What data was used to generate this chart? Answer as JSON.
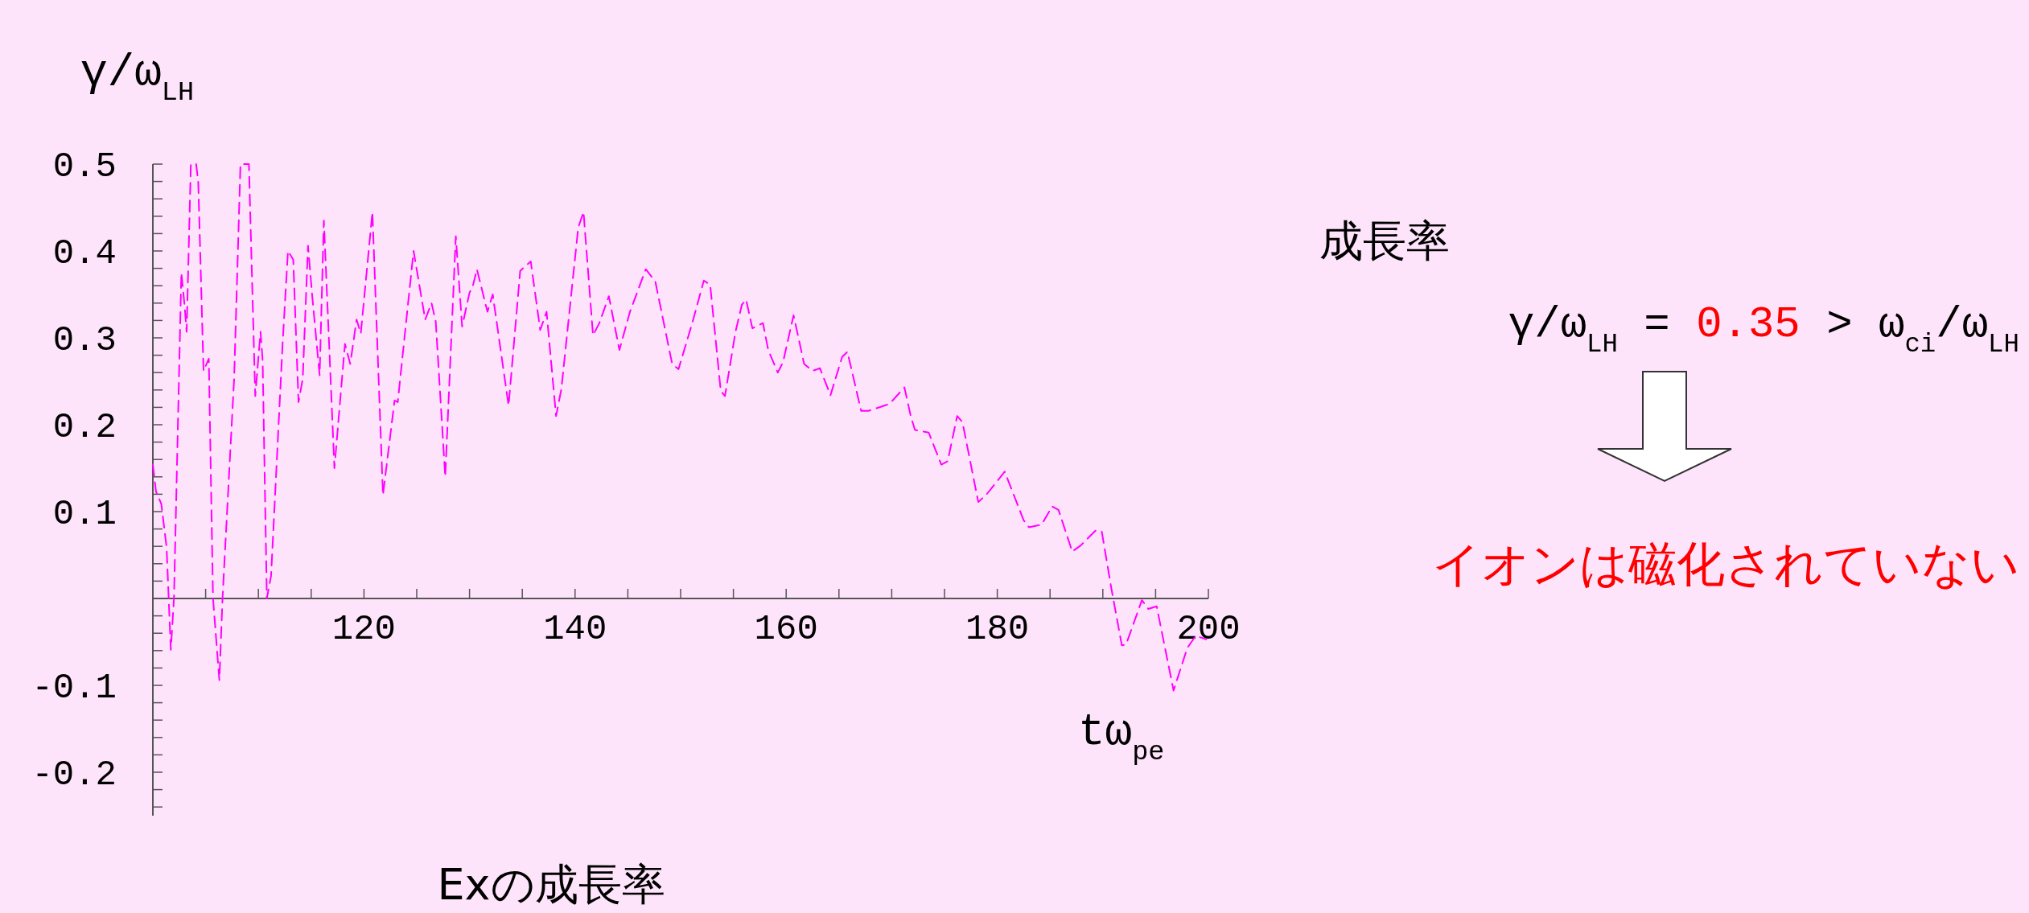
{
  "chart_data": {
    "type": "line",
    "title": "Exの成長率",
    "xlabel": "tω$_{pe}$",
    "ylabel": "γ/ω$_{LH}$",
    "annotations": [
      "成長率",
      "γ/ω$_{LH}$ = 0.35 > ω$_{ci}$/ω$_{LH}$",
      "イオンは磁化されていない"
    ],
    "xlim": [
      100,
      200
    ],
    "ylim": [
      -0.25,
      0.5
    ],
    "xticks": [
      {
        "value": 105,
        "label": null
      },
      {
        "value": 110,
        "label": null
      },
      {
        "value": 115,
        "label": null
      },
      120,
      {
        "value": 125,
        "label": null
      },
      {
        "value": 130,
        "label": null
      },
      {
        "value": 135,
        "label": null
      },
      140,
      {
        "value": 145,
        "label": null
      },
      {
        "value": 150,
        "label": null
      },
      {
        "value": 155,
        "label": null
      },
      160,
      {
        "value": 165,
        "label": null
      },
      {
        "value": 170,
        "label": null
      },
      {
        "value": 175,
        "label": null
      },
      180,
      {
        "value": 185,
        "label": null
      },
      {
        "value": 190,
        "label": null
      },
      {
        "value": 195,
        "label": null
      },
      200
    ],
    "yticks": [
      {
        "value": -0.24,
        "label": null
      },
      {
        "value": -0.22,
        "label": null
      },
      -0.2,
      {
        "value": -0.18,
        "label": null
      },
      {
        "value": -0.16,
        "label": null
      },
      {
        "value": -0.14,
        "label": null
      },
      {
        "value": -0.12,
        "label": null
      },
      -0.1,
      {
        "value": -0.08,
        "label": null
      },
      {
        "value": -0.06,
        "label": null
      },
      {
        "value": -0.04,
        "label": null
      },
      {
        "value": -0.02,
        "label": null
      },
      {
        "value": 0.02,
        "label": null
      },
      {
        "value": 0.04,
        "label": null
      },
      {
        "value": 0.06,
        "label": null
      },
      {
        "value": 0.08,
        "label": null
      },
      0.1,
      {
        "value": 0.12,
        "label": null
      },
      {
        "value": 0.14,
        "label": null
      },
      {
        "value": 0.16,
        "label": null
      },
      {
        "value": 0.18,
        "label": null
      },
      0.2,
      {
        "value": 0.22,
        "label": null
      },
      {
        "value": 0.24,
        "label": null
      },
      {
        "value": 0.26,
        "label": null
      },
      {
        "value": 0.28,
        "label": null
      },
      0.3,
      {
        "value": 0.32,
        "label": null
      },
      {
        "value": 0.34,
        "label": null
      },
      {
        "value": 0.36,
        "label": null
      },
      {
        "value": 0.38,
        "label": null
      },
      0.4,
      {
        "value": 0.42,
        "label": null
      },
      {
        "value": 0.44,
        "label": null
      },
      {
        "value": 0.46,
        "label": null
      },
      {
        "value": 0.48,
        "label": null
      },
      0.5
    ],
    "line_style": "dashed",
    "grid": false,
    "series": [
      {
        "color": "#ff00ff",
        "x": [
          100,
          100.3,
          100.8,
          101.3,
          101.7,
          102.0,
          102.7,
          103.0,
          103.2,
          103.6,
          104.1,
          104.3,
          104.8,
          105.3,
          105.7,
          106.3,
          106.6,
          107.7,
          108.3,
          109.1,
          109.7,
          110.2,
          110.4,
          110.8,
          111.2,
          112.3,
          112.8,
          113.3,
          113.8,
          114.2,
          114.7,
          115.1,
          115.8,
          116.2,
          117.2,
          118.2,
          118.7,
          119.3,
          119.7,
          120.8,
          121.8,
          122.9,
          123.2,
          124.7,
          125.8,
          126.4,
          126.8,
          127.7,
          128.7,
          129.3,
          130.0,
          130.3,
          130.7,
          131.7,
          132.2,
          133.7,
          134.8,
          135.8,
          136.7,
          137.3,
          138.2,
          138.7,
          140.3,
          140.8,
          141.7,
          142.3,
          143.2,
          144.2,
          145.2,
          146.7,
          147.6,
          149.2,
          149.8,
          151.1,
          152.2,
          152.8,
          153.8,
          154.2,
          155.2,
          155.8,
          156.2,
          156.8,
          157.8,
          158.3,
          159.2,
          159.7,
          160.7,
          161.7,
          162.5,
          163.2,
          164.2,
          165.3,
          165.8,
          167.1,
          167.8,
          169.8,
          171.2,
          171.8,
          172.2,
          173.5,
          174.7,
          175.3,
          176.2,
          176.7,
          178.2,
          179.0,
          180.7,
          182.5,
          183.0,
          184.2,
          185.2,
          185.8,
          187.1,
          187.9,
          189.3,
          189.9,
          190.8,
          191.8,
          192.2,
          193.7,
          194.3,
          195.1,
          196.7,
          198.0,
          198.8,
          199.8
        ],
        "values": [
          0.154,
          0.123,
          0.109,
          0.059,
          -0.059,
          0.0,
          0.375,
          0.338,
          0.307,
          0.5,
          0.5,
          0.48,
          0.262,
          0.276,
          0.0,
          -0.094,
          0.0,
          0.253,
          0.5,
          0.5,
          0.233,
          0.307,
          0.274,
          0.0,
          0.026,
          0.295,
          0.4,
          0.39,
          0.226,
          0.253,
          0.406,
          0.348,
          0.257,
          0.435,
          0.15,
          0.293,
          0.27,
          0.321,
          0.305,
          0.445,
          0.119,
          0.228,
          0.226,
          0.4,
          0.321,
          0.34,
          0.319,
          0.14,
          0.417,
          0.313,
          0.352,
          0.359,
          0.379,
          0.33,
          0.35,
          0.222,
          0.377,
          0.388,
          0.309,
          0.33,
          0.21,
          0.241,
          0.427,
          0.445,
          0.303,
          0.317,
          0.348,
          0.286,
          0.33,
          0.379,
          0.365,
          0.27,
          0.264,
          0.317,
          0.366,
          0.361,
          0.239,
          0.233,
          0.307,
          0.338,
          0.344,
          0.311,
          0.317,
          0.286,
          0.26,
          0.272,
          0.326,
          0.27,
          0.262,
          0.265,
          0.234,
          0.278,
          0.284,
          0.216,
          0.216,
          0.224,
          0.243,
          0.21,
          0.194,
          0.191,
          0.154,
          0.158,
          0.21,
          0.203,
          0.111,
          0.12,
          0.146,
          0.09,
          0.082,
          0.085,
          0.106,
          0.102,
          0.054,
          0.061,
          0.078,
          0.077,
          0.012,
          -0.054,
          -0.053,
          -0.002,
          -0.012,
          -0.009,
          -0.106,
          -0.057,
          -0.043,
          -0.047
        ]
      }
    ]
  }
}
